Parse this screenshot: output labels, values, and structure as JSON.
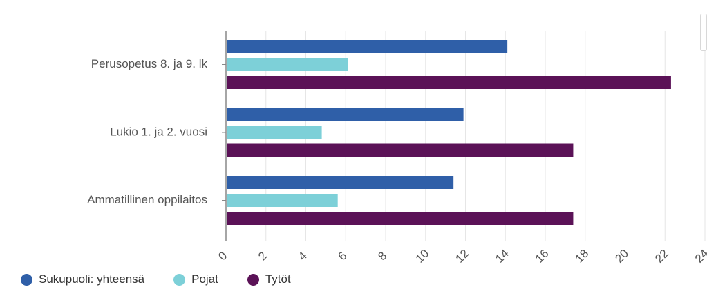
{
  "chart_data": {
    "type": "bar",
    "orientation": "horizontal",
    "categories": [
      "Perusopetus 8. ja 9. lk",
      "Lukio 1. ja 2. vuosi",
      "Ammatillinen oppilaitos"
    ],
    "series": [
      {
        "name": "Sukupuoli: yhteensä",
        "color": "#2f5fa8",
        "values": [
          14.1,
          11.9,
          11.4
        ]
      },
      {
        "name": "Pojat",
        "color": "#7dd0d8",
        "values": [
          6.1,
          4.8,
          5.6
        ]
      },
      {
        "name": "Tytöt",
        "color": "#5b1257",
        "values": [
          22.3,
          17.4,
          17.4
        ]
      }
    ],
    "xlim": [
      0,
      24
    ],
    "xticks": [
      0,
      2,
      4,
      6,
      8,
      10,
      12,
      14,
      16,
      18,
      20,
      22,
      24
    ],
    "grid": true,
    "legend_position": "bottom-left",
    "title": "",
    "xlabel": "",
    "ylabel": ""
  }
}
